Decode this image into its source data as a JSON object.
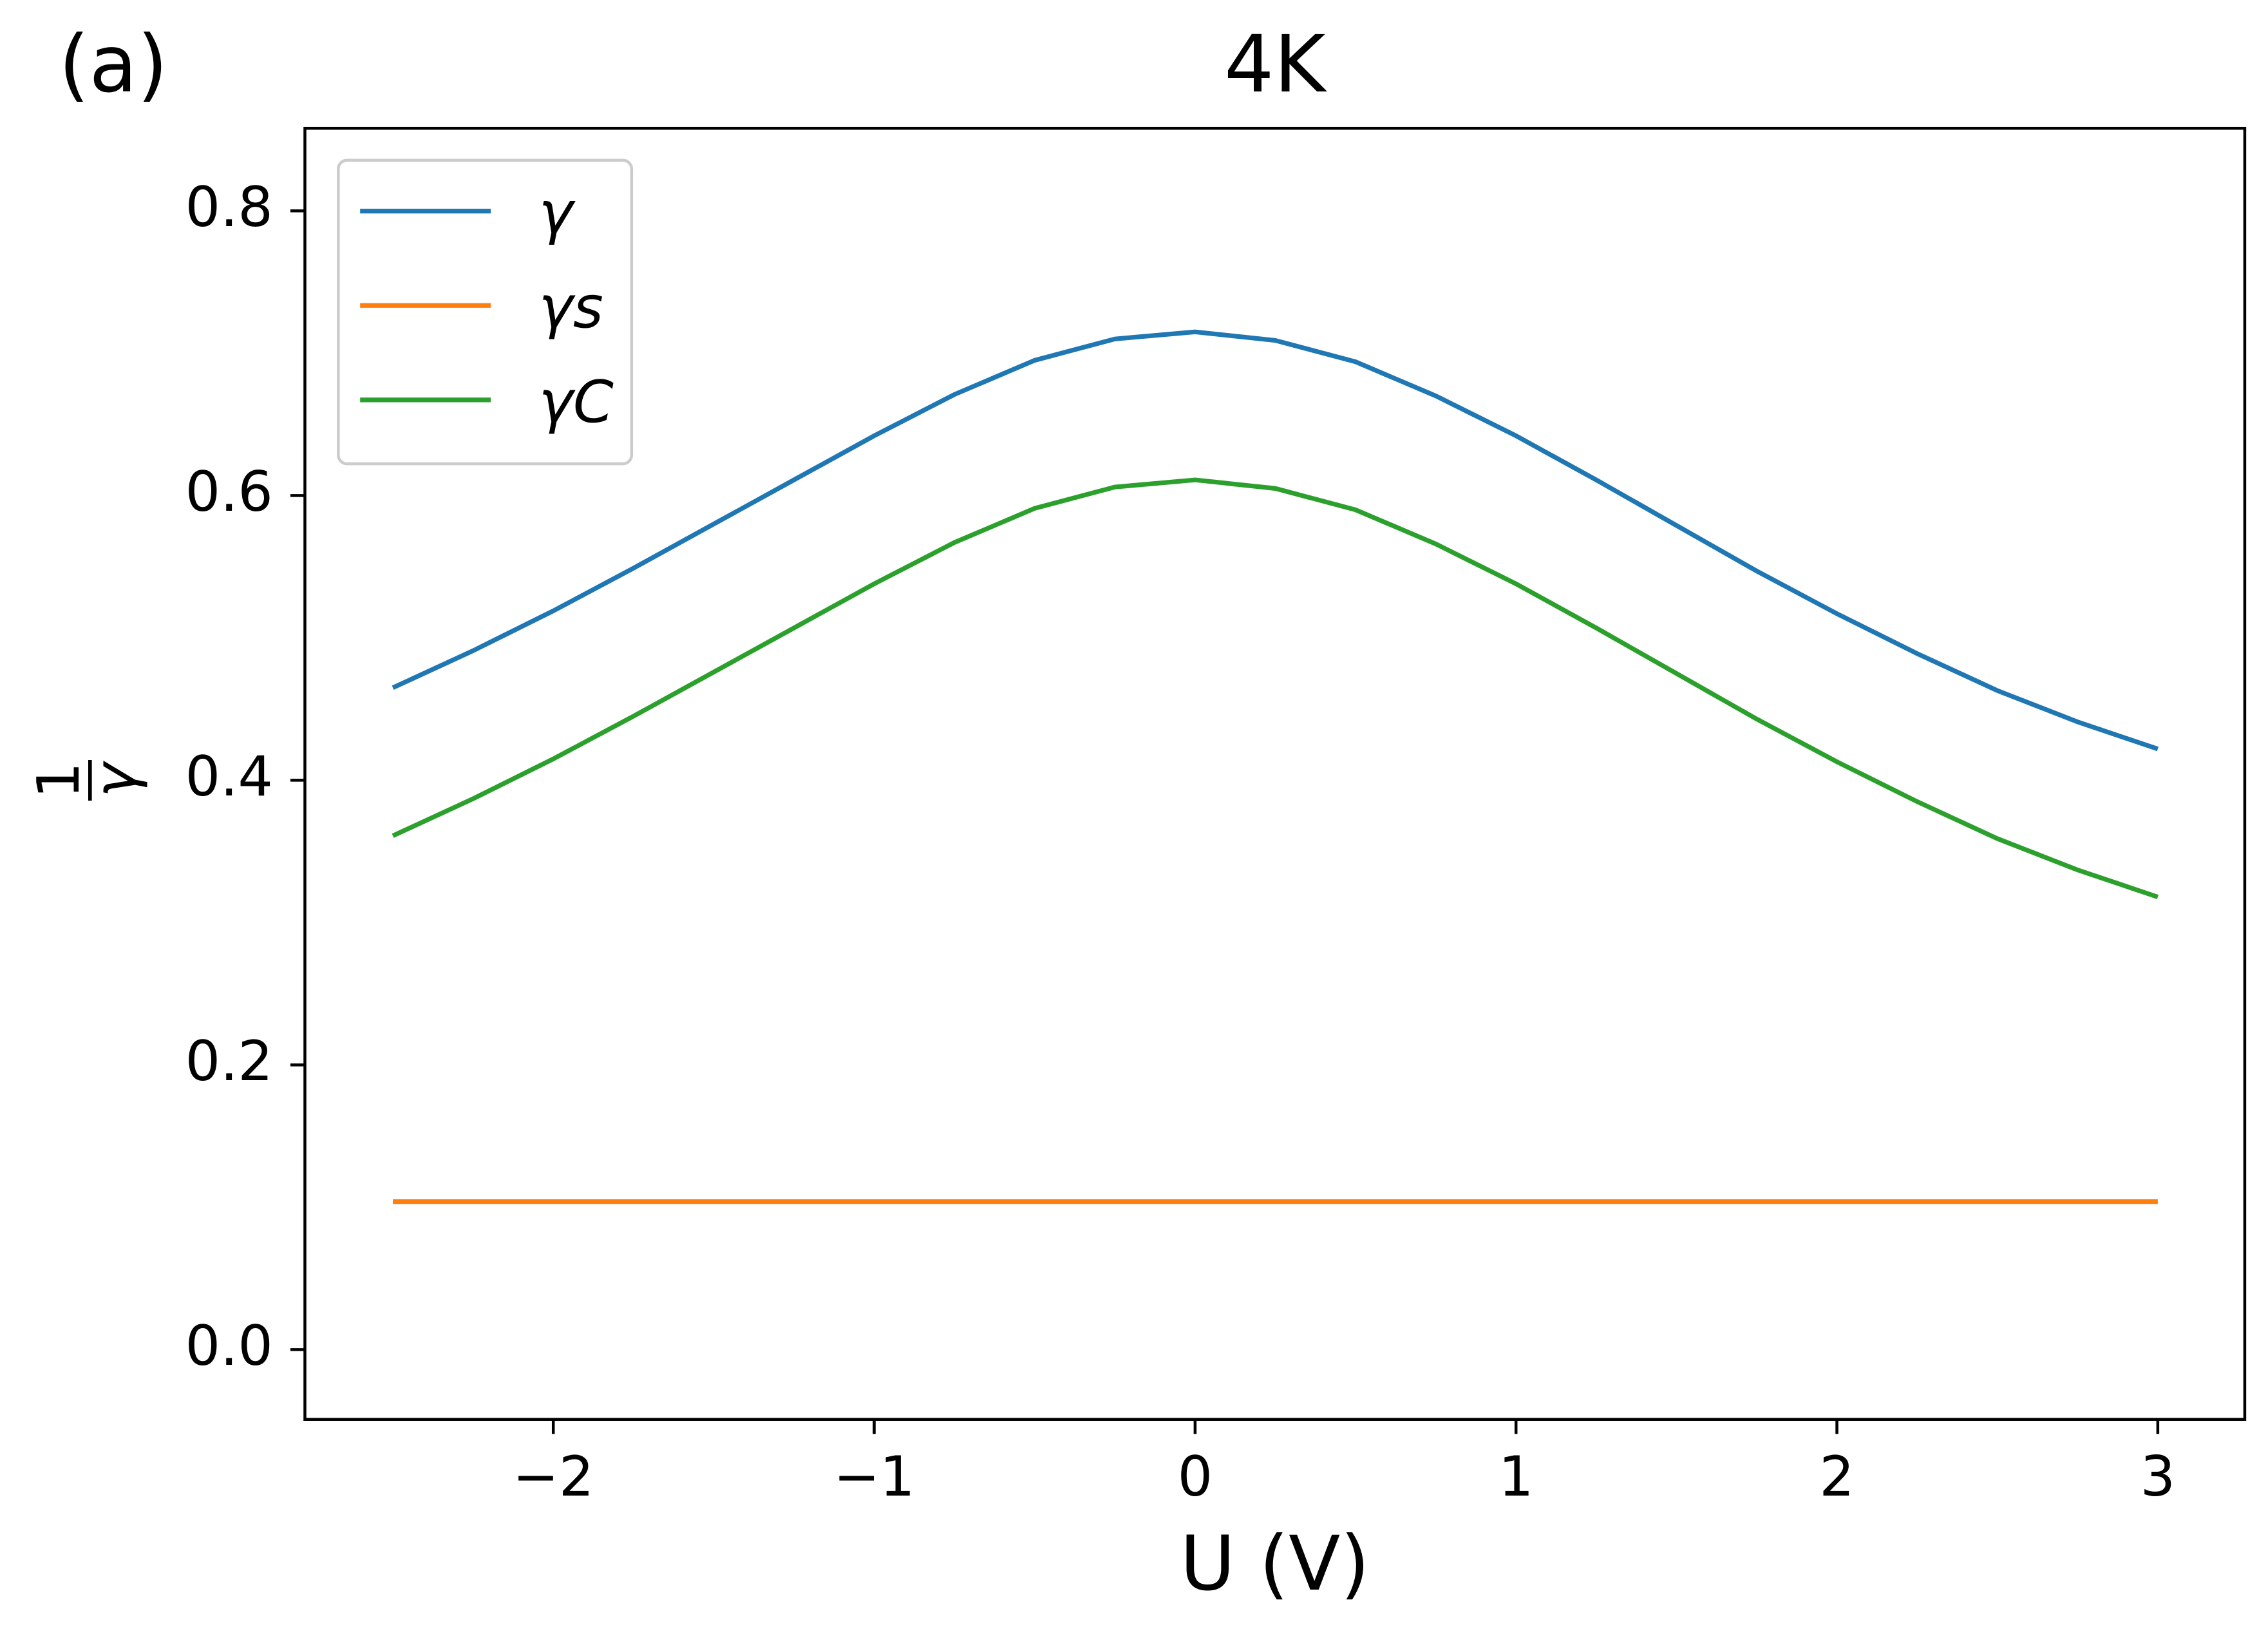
{
  "chart_data": {
    "type": "line",
    "panel_label": "(a)",
    "title": "4K",
    "xlabel": "U (V)",
    "ylabel": {
      "numerator": "1",
      "denominator": "γ"
    },
    "x": [
      -2.5,
      -2.25,
      -2,
      -1.75,
      -1.5,
      -1.25,
      -1,
      -0.75,
      -0.5,
      -0.25,
      0,
      0.25,
      0.5,
      0.75,
      1,
      1.25,
      1.5,
      1.75,
      2,
      2.25,
      2.5,
      2.75,
      3
    ],
    "series": [
      {
        "name": "γ",
        "color": "#1f77b4",
        "values": [
          0.465,
          0.491,
          0.519,
          0.549,
          0.58,
          0.611,
          0.642,
          0.671,
          0.695,
          0.71,
          0.715,
          0.709,
          0.694,
          0.67,
          0.642,
          0.611,
          0.579,
          0.547,
          0.517,
          0.489,
          0.463,
          0.441,
          0.422
        ]
      },
      {
        "name": "γs",
        "color": "#ff7f0e",
        "values": [
          0.104,
          0.104,
          0.104,
          0.104,
          0.104,
          0.104,
          0.104,
          0.104,
          0.104,
          0.104,
          0.104,
          0.104,
          0.104,
          0.104,
          0.104,
          0.104,
          0.104,
          0.104,
          0.104,
          0.104,
          0.104,
          0.104,
          0.104
        ]
      },
      {
        "name": "γC",
        "color": "#2ca02c",
        "values": [
          0.361,
          0.387,
          0.415,
          0.445,
          0.476,
          0.507,
          0.538,
          0.567,
          0.591,
          0.606,
          0.611,
          0.605,
          0.59,
          0.566,
          0.538,
          0.507,
          0.475,
          0.443,
          0.413,
          0.385,
          0.359,
          0.337,
          0.318
        ]
      }
    ],
    "xlim": [
      -2.774,
      3.271
    ],
    "ylim": [
      -0.049,
      0.858
    ],
    "xticks": [
      {
        "value": -2,
        "label": "−2"
      },
      {
        "value": -1,
        "label": "−1"
      },
      0,
      1,
      2,
      3
    ],
    "yticks": [
      {
        "value": 0,
        "label": "0.0"
      },
      0.2,
      0.4,
      0.6,
      0.8
    ],
    "grid": false,
    "legend": "upper left"
  }
}
